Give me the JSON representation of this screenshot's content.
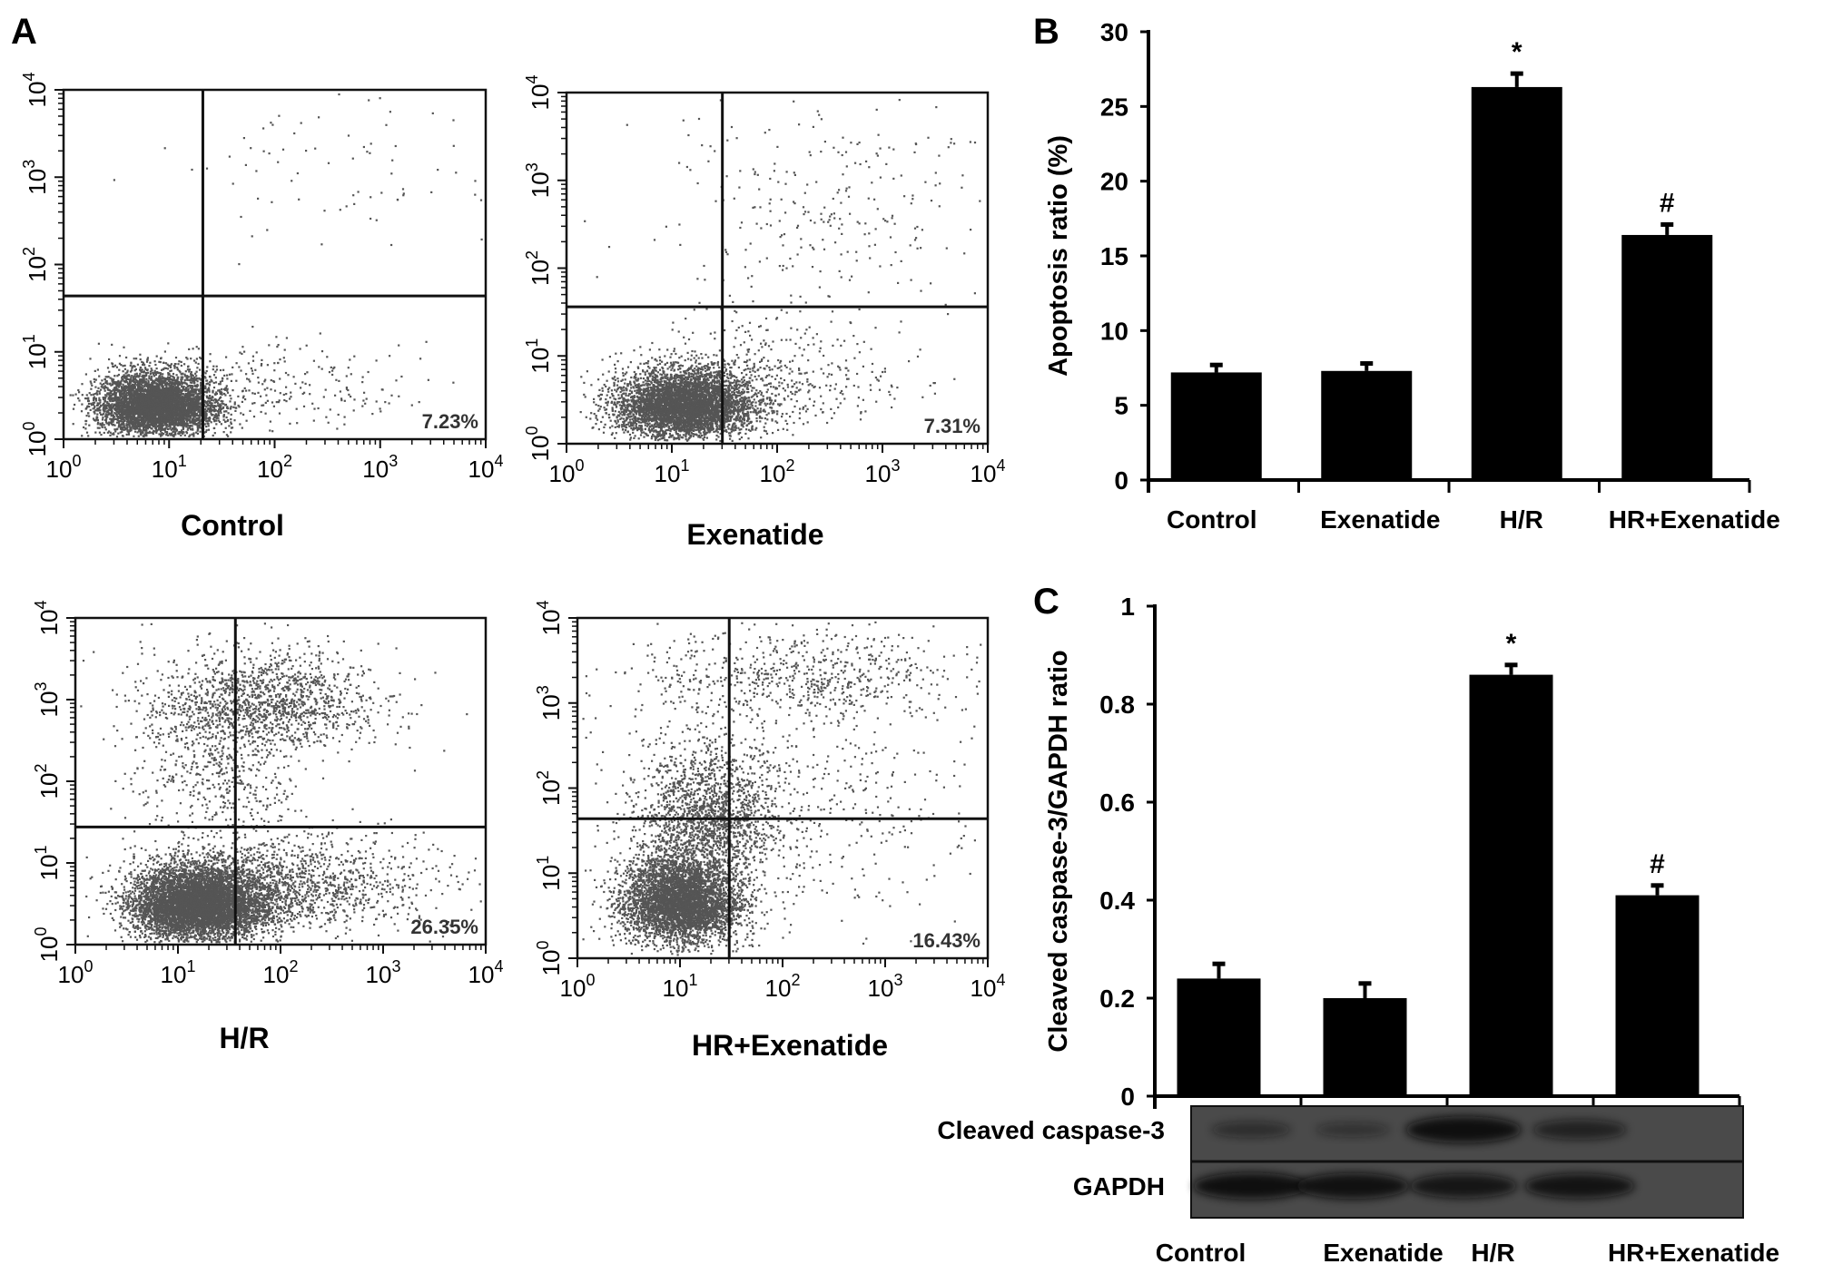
{
  "panels": {
    "a": "A",
    "b": "B",
    "c": "C"
  },
  "flow_plots": [
    {
      "label": "Control",
      "percent": "7.23%"
    },
    {
      "label": "Exenatide",
      "percent": "7.31%"
    },
    {
      "label": "H/R",
      "percent": "26.35%"
    },
    {
      "label": "HR+Exenatide",
      "percent": "16.43%"
    }
  ],
  "flow_axis": {
    "base": "10",
    "exponents": [
      "0",
      "1",
      "2",
      "3",
      "4"
    ]
  },
  "chart_data": [
    {
      "type": "bar",
      "title": "",
      "xlabel": "",
      "ylabel": "Apoptosis ratio (%)",
      "categories": [
        "Control",
        "Exenatide",
        "H/R",
        "HR+Exenatide"
      ],
      "values": [
        7.2,
        7.3,
        26.3,
        16.4
      ],
      "errors": [
        0.5,
        0.5,
        0.9,
        0.7
      ],
      "annotations": [
        "",
        "",
        "*",
        "#"
      ],
      "ylim": [
        0,
        30
      ],
      "yticks": [
        "0",
        "5",
        "10",
        "15",
        "20",
        "25",
        "30"
      ],
      "grid": false
    },
    {
      "type": "bar",
      "title": "",
      "xlabel": "",
      "ylabel": "Cleaved caspase-3/GAPDH ratio",
      "categories": [
        "Control",
        "Exenatide",
        "H/R",
        "HR+Exenatide"
      ],
      "values": [
        0.24,
        0.2,
        0.86,
        0.41
      ],
      "errors": [
        0.03,
        0.03,
        0.02,
        0.02
      ],
      "annotations": [
        "",
        "",
        "*",
        "#"
      ],
      "ylim": [
        0,
        1
      ],
      "yticks": [
        "0",
        "0.2",
        "0.4",
        "0.6",
        "0.8",
        "1"
      ],
      "grid": false
    }
  ],
  "blot": {
    "rows": [
      "Cleaved caspase-3",
      "GAPDH"
    ],
    "lanes": [
      "Control",
      "Exenatide",
      "H/R",
      "HR+Exenatide"
    ],
    "intensity": {
      "Cleaved caspase-3": [
        0.3,
        0.2,
        0.95,
        0.55
      ],
      "GAPDH": [
        0.95,
        0.9,
        0.8,
        0.85
      ]
    }
  }
}
